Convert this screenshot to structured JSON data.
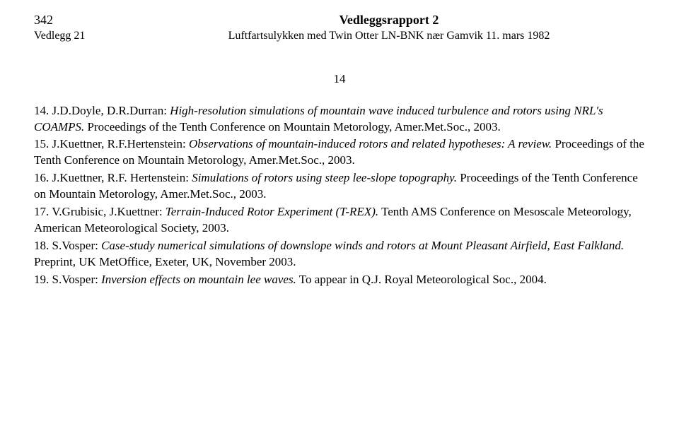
{
  "header": {
    "page_left": "342",
    "title": "Vedleggsrapport 2",
    "sub_left": "Vedlegg 21",
    "sub_center": "Luftfartsulykken med Twin Otter LN-BNK nær Gamvik 11. mars 1982",
    "inner_page": "14"
  },
  "refs": [
    {
      "num": "14.",
      "authors": "J.D.Doyle, D.R.Durran:",
      "title_italic": "High-resolution simulations of mountain wave induced turbulence and rotors using NRL's COAMPS.",
      "rest": " Proceedings of the Tenth Conference on Mountain Metorology, Amer.Met.Soc., 2003."
    },
    {
      "num": "15.",
      "authors": "J.Kuettner, R.F.Hertenstein:",
      "title_italic": "Observations of mountain-induced rotors and related hypotheses: A review.",
      "rest": " Proceedings of the Tenth Conference on Mountain Metorology, Amer.Met.Soc., 2003."
    },
    {
      "num": "16.",
      "authors": "J.Kuettner, R.F. Hertenstein:",
      "title_italic": "Simulations of rotors using steep lee-slope topography.",
      "rest": " Proceedings of the Tenth Conference on Mountain Metorology, Amer.Met.Soc., 2003."
    },
    {
      "num": "17.",
      "authors": "V.Grubisic, J.Kuettner:",
      "title_italic": "Terrain-Induced Rotor Experiment (T-REX).",
      "rest": " Tenth AMS Conference on Mesoscale Meteorology, American Meteorological Society, 2003."
    },
    {
      "num": "18.",
      "authors": "S.Vosper:",
      "title_italic": "Case-study numerical simulations of downslope winds and rotors at Mount Pleasant Airfield, East Falkland.",
      "rest": " Preprint, UK MetOffice, Exeter, UK, November 2003."
    },
    {
      "num": "19.",
      "authors": " S.Vosper:",
      "title_italic": "Inversion effects on mountain lee waves.",
      "rest": "  To appear in Q.J.  Royal Meteorological Soc., 2004."
    }
  ]
}
